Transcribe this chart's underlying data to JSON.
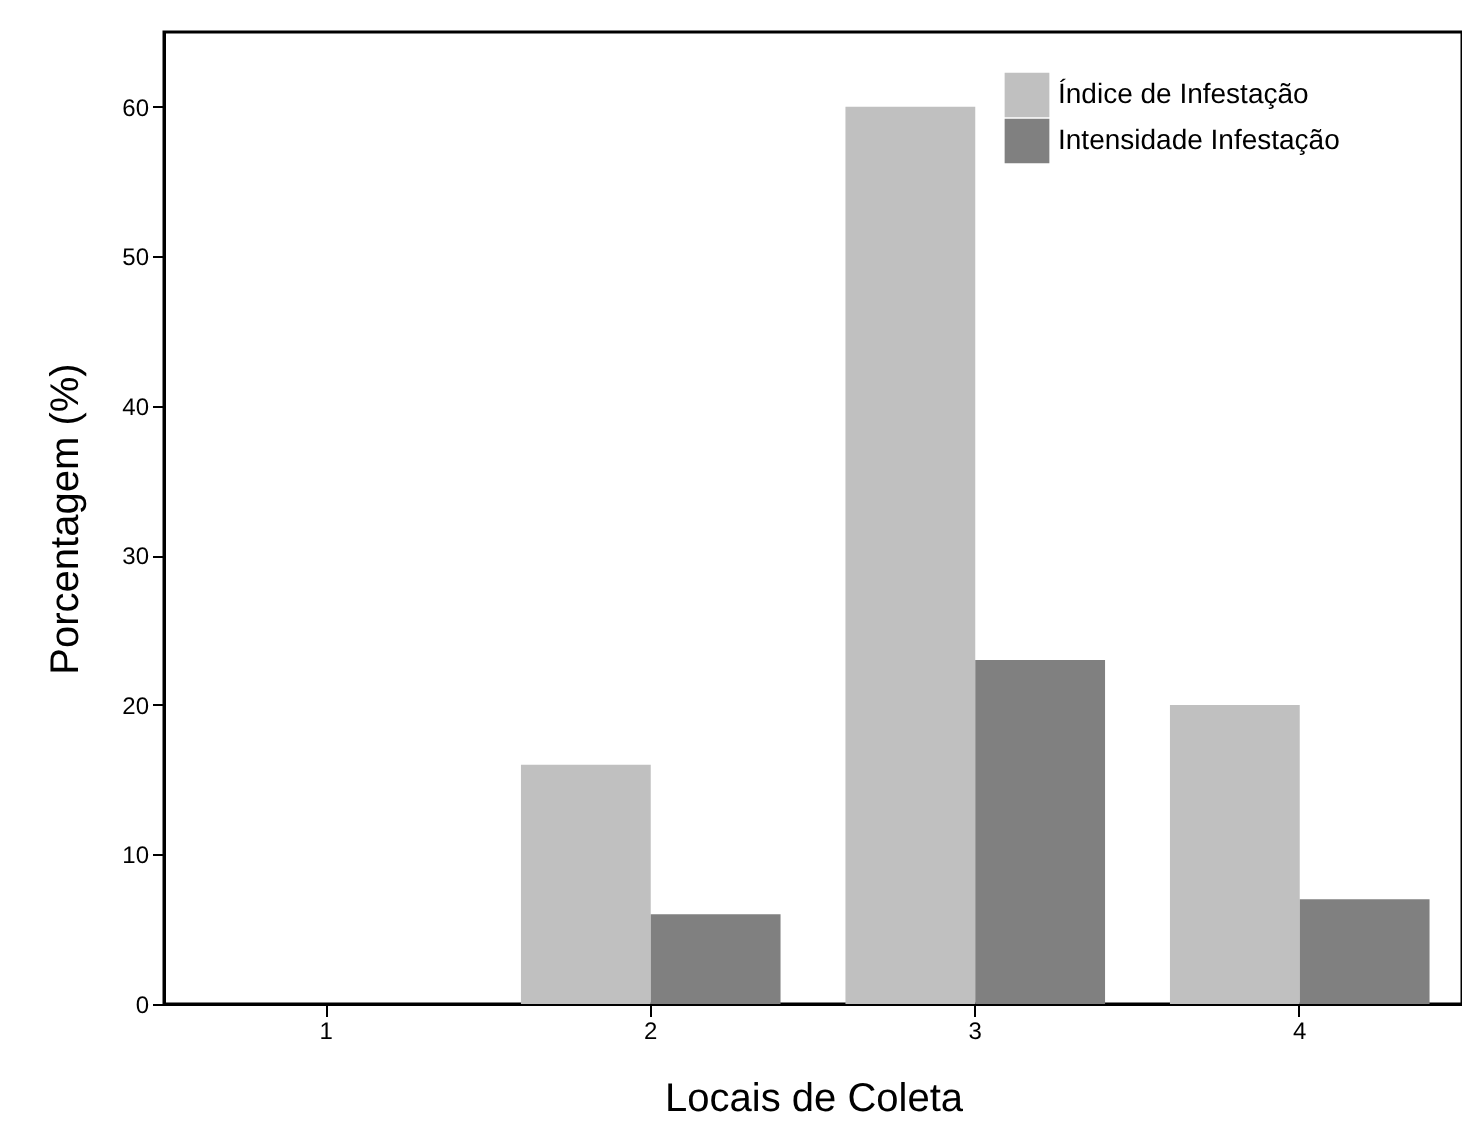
{
  "chart_data": {
    "type": "bar",
    "xlabel": "Locais de Coleta",
    "ylabel": "Porcentagem (%)",
    "categories": [
      "1",
      "2",
      "3",
      "4"
    ],
    "series": [
      {
        "name": "Índice de Infestação",
        "color": "#c0c0c0",
        "values": [
          0,
          16,
          60,
          20
        ]
      },
      {
        "name": "Intensidade Infestação",
        "color": "#808080",
        "values": [
          0,
          6,
          23,
          7
        ]
      }
    ],
    "ylim": [
      0,
      65
    ],
    "yticks": [
      0,
      10,
      20,
      30,
      40,
      50,
      60
    ],
    "grid": false,
    "legend": "top right"
  }
}
